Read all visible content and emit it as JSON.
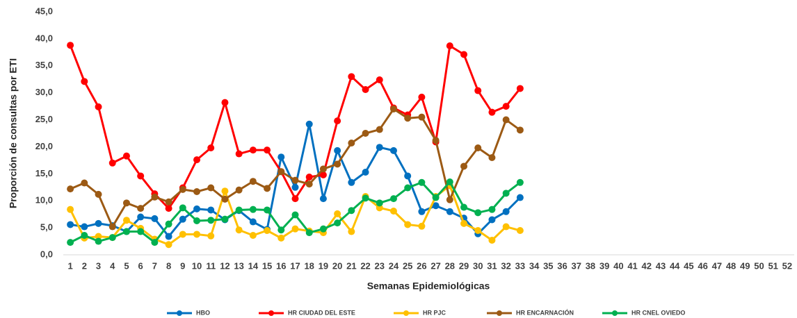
{
  "chart_data": {
    "type": "line",
    "y_label": "Proporción de consultas por ETI",
    "x_label": "Semanas Epidemiológicas",
    "categories": [
      "1",
      "2",
      "3",
      "4",
      "5",
      "6",
      "7",
      "8",
      "9",
      "10",
      "11",
      "12",
      "13",
      "14",
      "15",
      "16",
      "17",
      "18",
      "19",
      "20",
      "21",
      "22",
      "23",
      "24",
      "25",
      "26",
      "27",
      "28",
      "29",
      "30",
      "31",
      "32",
      "33",
      "34",
      "35",
      "36",
      "37",
      "38",
      "39",
      "40",
      "41",
      "42",
      "43",
      "44",
      "45",
      "46",
      "47",
      "48",
      "49",
      "50",
      "51",
      "52"
    ],
    "ylim": [
      0,
      45
    ],
    "yticks": [
      {
        "value": 0,
        "label": "0,0"
      },
      {
        "value": 5,
        "label": "5,0"
      },
      {
        "value": 10,
        "label": "10,0"
      },
      {
        "value": 15,
        "label": "15,0"
      },
      {
        "value": 20,
        "label": "20,0"
      },
      {
        "value": 25,
        "label": "25,0"
      },
      {
        "value": 30,
        "label": "30,0"
      },
      {
        "value": 35,
        "label": "35,0"
      },
      {
        "value": 40,
        "label": "40,0"
      },
      {
        "value": 45,
        "label": "45,0"
      }
    ],
    "grid": false,
    "legend": "bottom",
    "series": [
      {
        "name": "HBO",
        "color": "#0070c0",
        "values": [
          5.6,
          5.2,
          5.8,
          5.4,
          4.3,
          7.0,
          6.7,
          3.4,
          6.6,
          8.5,
          8.3,
          6.5,
          8.2,
          6.1,
          4.7,
          18.1,
          12.5,
          24.2,
          10.4,
          19.3,
          13.4,
          15.3,
          19.9,
          19.3,
          14.6,
          8.0,
          9.1,
          8.0,
          6.8,
          3.9,
          6.5,
          8.0,
          10.6,
          null,
          null,
          null,
          null,
          null,
          null,
          null,
          null,
          null,
          null,
          null,
          null,
          null,
          null,
          null,
          null,
          null,
          null,
          null
        ]
      },
      {
        "name": "HR CIUDAD DEL ESTE",
        "color": "#ff0000",
        "values": [
          38.8,
          32.1,
          27.4,
          17.0,
          18.3,
          14.6,
          11.3,
          8.6,
          12.4,
          17.6,
          19.8,
          28.2,
          18.7,
          19.4,
          19.4,
          15.4,
          10.4,
          14.4,
          14.8,
          24.8,
          33.0,
          30.6,
          32.4,
          27.2,
          25.9,
          29.2,
          20.9,
          38.7,
          37.1,
          30.4,
          26.4,
          27.5,
          30.8,
          null,
          null,
          null,
          null,
          null,
          null,
          null,
          null,
          null,
          null,
          null,
          null,
          null,
          null,
          null,
          null,
          null,
          null,
          null
        ]
      },
      {
        "name": "HR PJC",
        "color": "#ffc000",
        "values": [
          8.4,
          3.1,
          3.4,
          3.2,
          6.4,
          4.9,
          2.9,
          1.9,
          3.8,
          3.8,
          3.5,
          11.8,
          4.6,
          3.6,
          4.5,
          3.1,
          4.8,
          4.4,
          4.1,
          7.6,
          4.3,
          10.8,
          8.7,
          8.1,
          5.6,
          5.3,
          10.8,
          12.8,
          5.8,
          4.5,
          2.7,
          5.2,
          4.5,
          null,
          null,
          null,
          null,
          null,
          null,
          null,
          null,
          null,
          null,
          null,
          null,
          null,
          null,
          null,
          null,
          null,
          null,
          null
        ]
      },
      {
        "name": "HR ENCARNACIÓN",
        "color": "#9c5a14",
        "values": [
          12.2,
          13.3,
          11.2,
          5.2,
          9.6,
          8.6,
          10.7,
          9.8,
          12.1,
          11.7,
          12.4,
          10.3,
          12.0,
          13.6,
          12.3,
          15.4,
          13.8,
          13.1,
          15.9,
          16.8,
          20.7,
          22.5,
          23.2,
          27.0,
          25.3,
          25.5,
          21.2,
          10.2,
          16.4,
          19.8,
          18.0,
          25.0,
          23.1,
          null,
          null,
          null,
          null,
          null,
          null,
          null,
          null,
          null,
          null,
          null,
          null,
          null,
          null,
          null,
          null,
          null,
          null,
          null
        ]
      },
      {
        "name": "HR CNEL OVIEDO",
        "color": "#00b050",
        "values": [
          2.3,
          3.6,
          2.5,
          3.2,
          4.3,
          4.3,
          2.3,
          5.7,
          8.7,
          6.3,
          6.4,
          6.6,
          8.3,
          8.4,
          8.3,
          4.6,
          7.4,
          4.1,
          4.8,
          5.9,
          8.2,
          10.5,
          9.6,
          10.4,
          12.4,
          13.4,
          10.6,
          13.5,
          8.8,
          7.8,
          8.4,
          11.4,
          13.4,
          null,
          null,
          null,
          null,
          null,
          null,
          null,
          null,
          null,
          null,
          null,
          null,
          null,
          null,
          null,
          null,
          null,
          null,
          null
        ]
      }
    ]
  }
}
